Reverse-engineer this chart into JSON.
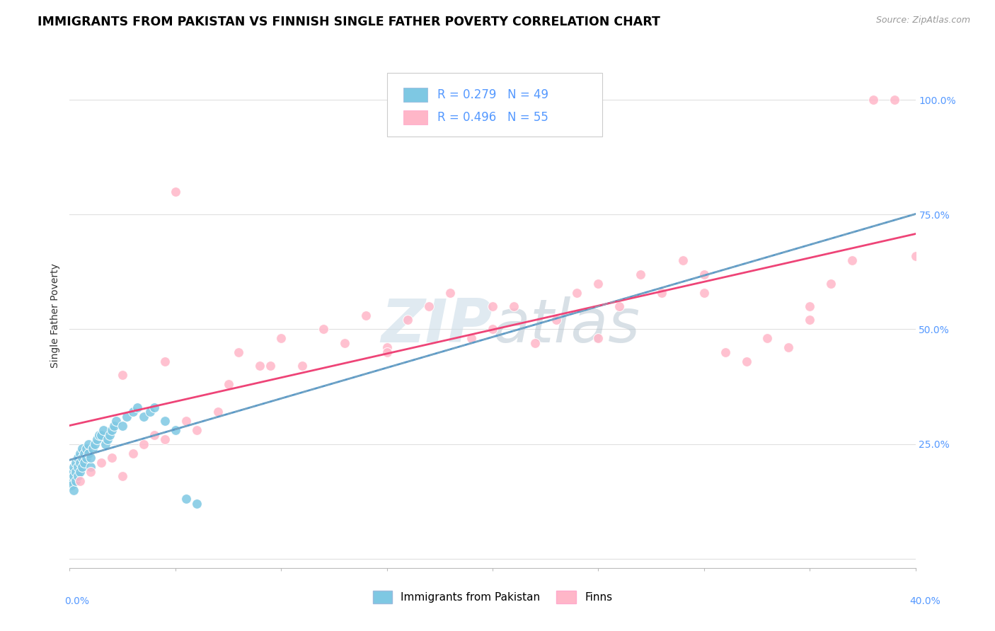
{
  "title": "IMMIGRANTS FROM PAKISTAN VS FINNISH SINGLE FATHER POVERTY CORRELATION CHART",
  "source": "Source: ZipAtlas.com",
  "ylabel": "Single Father Poverty",
  "xlim": [
    0,
    0.4
  ],
  "ylim": [
    -0.02,
    1.08
  ],
  "legend1_label": "R = 0.279   N = 49",
  "legend2_label": "R = 0.496   N = 55",
  "series1_name": "Immigrants from Pakistan",
  "series2_name": "Finns",
  "series1_color": "#7ec8e3",
  "series2_color": "#ffb6c8",
  "series1_line_color": "#5599cc",
  "series2_line_color": "#ee4477",
  "watermark_color": "#ccdde8",
  "background_color": "#ffffff",
  "grid_color": "#e0e0e0",
  "right_tick_color": "#5599ff",
  "title_fontsize": 12.5,
  "source_fontsize": 9,
  "tick_fontsize": 10,
  "legend_fontsize": 12,
  "ylabel_fontsize": 10,
  "pak_x": [
    0.001,
    0.001,
    0.001,
    0.002,
    0.002,
    0.002,
    0.003,
    0.003,
    0.003,
    0.004,
    0.004,
    0.004,
    0.005,
    0.005,
    0.005,
    0.006,
    0.006,
    0.006,
    0.007,
    0.007,
    0.008,
    0.008,
    0.009,
    0.009,
    0.01,
    0.01,
    0.011,
    0.012,
    0.013,
    0.014,
    0.015,
    0.016,
    0.017,
    0.018,
    0.019,
    0.02,
    0.021,
    0.022,
    0.025,
    0.027,
    0.03,
    0.032,
    0.035,
    0.038,
    0.04,
    0.045,
    0.05,
    0.055,
    0.06
  ],
  "pak_y": [
    0.17,
    0.19,
    0.16,
    0.18,
    0.2,
    0.15,
    0.19,
    0.21,
    0.17,
    0.2,
    0.22,
    0.18,
    0.21,
    0.19,
    0.23,
    0.2,
    0.22,
    0.24,
    0.21,
    0.23,
    0.22,
    0.24,
    0.23,
    0.25,
    0.2,
    0.22,
    0.24,
    0.25,
    0.26,
    0.27,
    0.27,
    0.28,
    0.25,
    0.26,
    0.27,
    0.28,
    0.29,
    0.3,
    0.29,
    0.31,
    0.32,
    0.33,
    0.31,
    0.32,
    0.33,
    0.3,
    0.28,
    0.13,
    0.12
  ],
  "finn_x": [
    0.005,
    0.01,
    0.015,
    0.02,
    0.025,
    0.03,
    0.035,
    0.04,
    0.045,
    0.05,
    0.055,
    0.06,
    0.07,
    0.08,
    0.09,
    0.1,
    0.11,
    0.12,
    0.13,
    0.14,
    0.15,
    0.16,
    0.17,
    0.18,
    0.19,
    0.2,
    0.21,
    0.22,
    0.23,
    0.24,
    0.25,
    0.26,
    0.27,
    0.28,
    0.29,
    0.3,
    0.31,
    0.32,
    0.33,
    0.34,
    0.35,
    0.36,
    0.37,
    0.38,
    0.39,
    0.4,
    0.025,
    0.045,
    0.075,
    0.095,
    0.15,
    0.2,
    0.25,
    0.3,
    0.35
  ],
  "finn_y": [
    0.17,
    0.19,
    0.21,
    0.22,
    0.18,
    0.23,
    0.25,
    0.27,
    0.26,
    0.8,
    0.3,
    0.28,
    0.32,
    0.45,
    0.42,
    0.48,
    0.42,
    0.5,
    0.47,
    0.53,
    0.46,
    0.52,
    0.55,
    0.58,
    0.48,
    0.5,
    0.55,
    0.47,
    0.52,
    0.58,
    0.6,
    0.55,
    0.62,
    0.58,
    0.65,
    0.62,
    0.45,
    0.43,
    0.48,
    0.46,
    0.55,
    0.6,
    0.65,
    1.0,
    1.0,
    0.66,
    0.4,
    0.43,
    0.38,
    0.42,
    0.45,
    0.55,
    0.48,
    0.58,
    0.52
  ]
}
